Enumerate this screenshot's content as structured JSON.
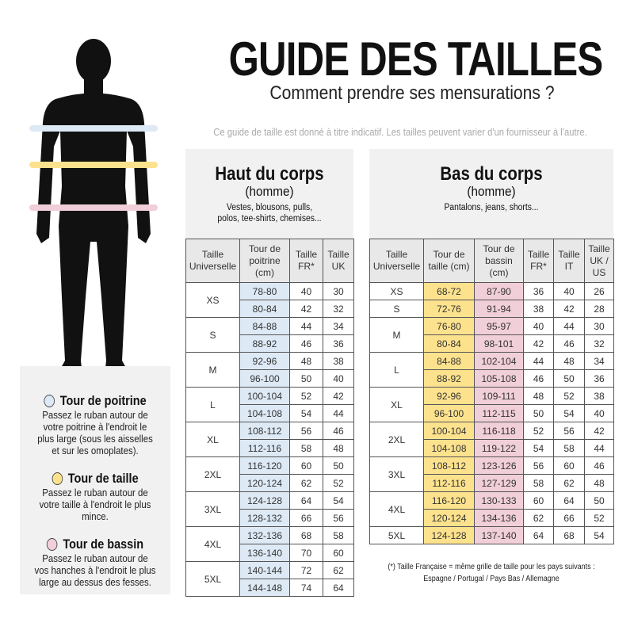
{
  "header": {
    "title": "GUIDE DES TAILLES",
    "subtitle": "Comment prendre ses mensurations ?",
    "disclaimer": "Ce guide de taille est donné à titre indicatif. Les tailles peuvent varier d'un fournisseur à l'autre."
  },
  "colors": {
    "chest": "#dde9f5",
    "waist": "#fde28e",
    "hips": "#f1cfd8",
    "header_bg": "#e8e8e8"
  },
  "upper": {
    "title": "Haut du corps",
    "gender": "(homme)",
    "desc": "Vestes, blousons, pulls, polos, tee-shirts, chemises...",
    "columns": [
      "Taille Universelle",
      "Tour de poitrine (cm)",
      "Taille FR*",
      "Taille UK"
    ],
    "groups": [
      {
        "size": "XS",
        "rows": [
          [
            "78-80",
            "40",
            "30"
          ],
          [
            "80-84",
            "42",
            "32"
          ]
        ]
      },
      {
        "size": "S",
        "rows": [
          [
            "84-88",
            "44",
            "34"
          ],
          [
            "88-92",
            "46",
            "36"
          ]
        ]
      },
      {
        "size": "M",
        "rows": [
          [
            "92-96",
            "48",
            "38"
          ],
          [
            "96-100",
            "50",
            "40"
          ]
        ]
      },
      {
        "size": "L",
        "rows": [
          [
            "100-104",
            "52",
            "42"
          ],
          [
            "104-108",
            "54",
            "44"
          ]
        ]
      },
      {
        "size": "XL",
        "rows": [
          [
            "108-112",
            "56",
            "46"
          ],
          [
            "112-116",
            "58",
            "48"
          ]
        ]
      },
      {
        "size": "2XL",
        "rows": [
          [
            "116-120",
            "60",
            "50"
          ],
          [
            "120-124",
            "62",
            "52"
          ]
        ]
      },
      {
        "size": "3XL",
        "rows": [
          [
            "124-128",
            "64",
            "54"
          ],
          [
            "128-132",
            "66",
            "56"
          ]
        ]
      },
      {
        "size": "4XL",
        "rows": [
          [
            "132-136",
            "68",
            "58"
          ],
          [
            "136-140",
            "70",
            "60"
          ]
        ]
      },
      {
        "size": "5XL",
        "rows": [
          [
            "140-144",
            "72",
            "62"
          ],
          [
            "144-148",
            "74",
            "64"
          ]
        ]
      }
    ]
  },
  "lower": {
    "title": "Bas du corps",
    "gender": "(homme)",
    "desc": "Pantalons, jeans, shorts...",
    "columns": [
      "Taille Universelle",
      "Tour de taille (cm)",
      "Tour de bassin (cm)",
      "Taille FR*",
      "Taille IT",
      "Taille UK / US"
    ],
    "groups": [
      {
        "size": "XS",
        "rows": [
          [
            "68-72",
            "87-90",
            "36",
            "40",
            "26"
          ]
        ]
      },
      {
        "size": "S",
        "rows": [
          [
            "72-76",
            "91-94",
            "38",
            "42",
            "28"
          ]
        ]
      },
      {
        "size": "M",
        "rows": [
          [
            "76-80",
            "95-97",
            "40",
            "44",
            "30"
          ],
          [
            "80-84",
            "98-101",
            "42",
            "46",
            "32"
          ]
        ]
      },
      {
        "size": "L",
        "rows": [
          [
            "84-88",
            "102-104",
            "44",
            "48",
            "34"
          ],
          [
            "88-92",
            "105-108",
            "46",
            "50",
            "36"
          ]
        ]
      },
      {
        "size": "XL",
        "rows": [
          [
            "92-96",
            "109-111",
            "48",
            "52",
            "38"
          ],
          [
            "96-100",
            "112-115",
            "50",
            "54",
            "40"
          ]
        ]
      },
      {
        "size": "2XL",
        "rows": [
          [
            "100-104",
            "116-118",
            "52",
            "56",
            "42"
          ],
          [
            "104-108",
            "119-122",
            "54",
            "58",
            "44"
          ]
        ]
      },
      {
        "size": "3XL",
        "rows": [
          [
            "108-112",
            "123-126",
            "56",
            "60",
            "46"
          ],
          [
            "112-116",
            "127-129",
            "58",
            "62",
            "48"
          ]
        ]
      },
      {
        "size": "4XL",
        "rows": [
          [
            "116-120",
            "130-133",
            "60",
            "64",
            "50"
          ],
          [
            "120-124",
            "134-136",
            "62",
            "66",
            "52"
          ]
        ]
      },
      {
        "size": "5XL",
        "rows": [
          [
            "124-128",
            "137-140",
            "64",
            "68",
            "54"
          ]
        ]
      }
    ]
  },
  "measures": [
    {
      "title": "Tour de poitrine",
      "text": "Passez le ruban autour de votre poitrine à l'endroit le plus large (sous les aisselles et sur les omoplates)."
    },
    {
      "title": "Tour de taille",
      "text": "Passez le ruban autour de votre taille à l'endroit le plus mince."
    },
    {
      "title": "Tour de bassin",
      "text": "Passez le ruban autour de vos hanches à l'endroit le plus large au dessus des fesses."
    }
  ],
  "footnote": "(*) Taille Française = même grille de taille pour les pays suivants : Espagne / Portugal / Pays Bas / Allemagne"
}
